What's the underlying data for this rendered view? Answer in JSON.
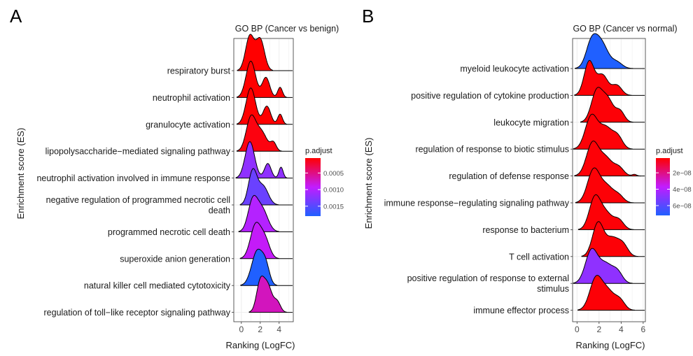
{
  "chart_data": [
    {
      "type": "ridgeline",
      "panel_label": "A",
      "title": "GO BP (Cancer vs benign)",
      "xlabel": "Ranking (LogFC)",
      "ylabel": "Enrichment score (ES)",
      "xlim": [
        -0.8,
        5.5
      ],
      "xticks": [
        0,
        2,
        4
      ],
      "legend": {
        "title": "p.adjust",
        "breaks": [
          0.0005,
          0.001,
          0.0015
        ],
        "break_labels": [
          "0.0005",
          "0.0010",
          "0.0015"
        ],
        "range": [
          5e-05,
          0.0018
        ],
        "low_color": "#ff0000",
        "high_color": "#2060ff",
        "position": "right"
      },
      "terms": [
        {
          "label_lines": [
            "respiratory burst"
          ],
          "p_adjust": 0.0,
          "peaks": [
            [
              0.9,
              0.45,
              1.0
            ],
            [
              2.0,
              0.45,
              0.9
            ]
          ]
        },
        {
          "label_lines": [
            "neutrophil activation"
          ],
          "p_adjust": 0.0,
          "peaks": [
            [
              1.0,
              0.5,
              1.0
            ],
            [
              2.6,
              0.4,
              0.55
            ],
            [
              4.1,
              0.25,
              0.28
            ]
          ]
        },
        {
          "label_lines": [
            "granulocyte activation"
          ],
          "p_adjust": 0.0,
          "peaks": [
            [
              1.0,
              0.5,
              1.0
            ],
            [
              2.7,
              0.4,
              0.5
            ],
            [
              4.1,
              0.25,
              0.28
            ]
          ]
        },
        {
          "label_lines": [
            "lipopolysaccharide−mediated signaling pathway"
          ],
          "p_adjust": 0.0001,
          "peaks": [
            [
              1.0,
              0.5,
              1.0
            ],
            [
              2.1,
              0.6,
              0.6
            ],
            [
              3.4,
              0.3,
              0.25
            ]
          ]
        },
        {
          "label_lines": [
            "neutrophil activation involved in immune response"
          ],
          "p_adjust": 0.0012,
          "peaks": [
            [
              0.9,
              0.5,
              1.0
            ],
            [
              2.8,
              0.35,
              0.4
            ],
            [
              4.2,
              0.22,
              0.3
            ]
          ]
        },
        {
          "label_lines": [
            "negative regulation of programmed necrotic cell",
            "death"
          ],
          "p_adjust": 0.0014,
          "peaks": [
            [
              1.2,
              0.45,
              1.0
            ],
            [
              2.3,
              0.55,
              0.55
            ]
          ]
        },
        {
          "label_lines": [
            "programmed necrotic cell death"
          ],
          "p_adjust": 0.001,
          "peaks": [
            [
              1.2,
              0.5,
              1.0
            ],
            [
              2.2,
              0.6,
              0.75
            ]
          ]
        },
        {
          "label_lines": [
            "superoxide anion generation"
          ],
          "p_adjust": 0.0009,
          "peaks": [
            [
              1.5,
              0.55,
              1.0
            ],
            [
              2.5,
              0.5,
              0.55
            ]
          ]
        },
        {
          "label_lines": [
            "natural killer cell mediated cytotoxicity"
          ],
          "p_adjust": 0.0018,
          "peaks": [
            [
              1.7,
              0.6,
              1.0
            ],
            [
              2.6,
              0.4,
              0.45
            ]
          ]
        },
        {
          "label_lines": [
            "regulation of toll−like receptor signaling pathway"
          ],
          "p_adjust": 0.0007,
          "peaks": [
            [
              2.0,
              0.4,
              1.0
            ],
            [
              2.8,
              0.45,
              0.9
            ],
            [
              3.8,
              0.35,
              0.35
            ]
          ]
        }
      ]
    },
    {
      "type": "ridgeline",
      "panel_label": "B",
      "title": "GO BP (Cancer vs normal)",
      "xlabel": "Ranking (LogFC)",
      "ylabel": "Enrichment score (ES)",
      "xlim": [
        -0.4,
        6.2
      ],
      "xticks": [
        0,
        2,
        4,
        6
      ],
      "legend": {
        "title": "p.adjust",
        "breaks": [
          2e-08,
          4e-08,
          6e-08
        ],
        "break_labels": [
          "2e−08",
          "4e−08",
          "6e−08"
        ],
        "range": [
          2e-09,
          7.2e-08
        ],
        "low_color": "#ff0000",
        "high_color": "#2060ff",
        "position": "right"
      },
      "terms": [
        {
          "label_lines": [
            "myeloid leukocyte activation"
          ],
          "p_adjust": 7.2e-08,
          "peaks": [
            [
              1.3,
              0.5,
              0.95
            ],
            [
              2.2,
              0.6,
              1.0
            ],
            [
              3.6,
              0.5,
              0.25
            ]
          ]
        },
        {
          "label_lines": [
            "positive regulation of cytokine production"
          ],
          "p_adjust": 3e-09,
          "peaks": [
            [
              1.1,
              0.45,
              1.0
            ],
            [
              2.3,
              0.5,
              0.6
            ],
            [
              3.6,
              0.45,
              0.3
            ]
          ]
        },
        {
          "label_lines": [
            "leukocyte migration"
          ],
          "p_adjust": 3e-09,
          "peaks": [
            [
              1.8,
              0.5,
              1.0
            ],
            [
              2.8,
              0.5,
              0.7
            ],
            [
              3.9,
              0.4,
              0.35
            ]
          ]
        },
        {
          "label_lines": [
            "regulation of response to biotic stimulus"
          ],
          "p_adjust": 3e-09,
          "peaks": [
            [
              1.3,
              0.55,
              1.0
            ],
            [
              2.6,
              0.6,
              0.65
            ],
            [
              3.7,
              0.45,
              0.35
            ]
          ]
        },
        {
          "label_lines": [
            "regulation of defense response"
          ],
          "p_adjust": 3e-09,
          "peaks": [
            [
              1.4,
              0.55,
              1.0
            ],
            [
              2.6,
              0.6,
              0.55
            ],
            [
              3.8,
              0.45,
              0.25
            ],
            [
              5.2,
              0.2,
              0.05
            ]
          ]
        },
        {
          "label_lines": [
            "immune response−regulating signaling pathway"
          ],
          "p_adjust": 3e-09,
          "peaks": [
            [
              1.5,
              0.55,
              1.0
            ],
            [
              2.7,
              0.6,
              0.5
            ],
            [
              3.8,
              0.45,
              0.2
            ]
          ]
        },
        {
          "label_lines": [
            "response to bacterium"
          ],
          "p_adjust": 3e-09,
          "peaks": [
            [
              1.6,
              0.5,
              1.0
            ],
            [
              2.6,
              0.6,
              0.55
            ],
            [
              3.8,
              0.45,
              0.3
            ]
          ]
        },
        {
          "label_lines": [
            "T cell activation"
          ],
          "p_adjust": 3e-09,
          "peaks": [
            [
              1.9,
              0.5,
              1.0
            ],
            [
              3.2,
              0.6,
              0.55
            ],
            [
              4.2,
              0.45,
              0.3
            ]
          ]
        },
        {
          "label_lines": [
            "positive regulation of response to external",
            "stimulus"
          ],
          "p_adjust": 4.8e-08,
          "peaks": [
            [
              1.3,
              0.55,
              1.0
            ],
            [
              2.6,
              0.65,
              0.6
            ],
            [
              3.7,
              0.45,
              0.3
            ]
          ]
        },
        {
          "label_lines": [
            "immune effector process"
          ],
          "p_adjust": 3e-09,
          "peaks": [
            [
              1.7,
              0.55,
              1.0
            ],
            [
              2.8,
              0.6,
              0.6
            ],
            [
              3.9,
              0.45,
              0.3
            ]
          ]
        }
      ]
    }
  ]
}
